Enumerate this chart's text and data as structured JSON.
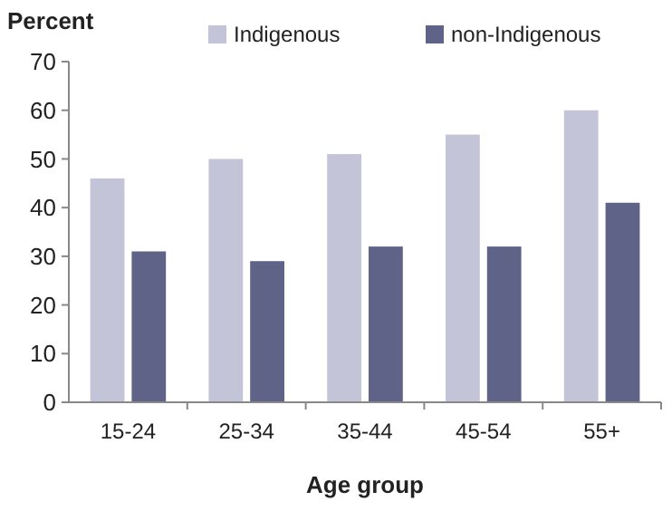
{
  "chart_data": {
    "type": "bar",
    "ylabel": "Percent",
    "xlabel": "Age group",
    "categories": [
      "15-24",
      "25-34",
      "35-44",
      "45-54",
      "55+"
    ],
    "series": [
      {
        "name": "Indigenous",
        "color": "#c4c4d8",
        "values": [
          46,
          50,
          51,
          55,
          60
        ]
      },
      {
        "name": "non-Indigenous",
        "color": "#5f6387",
        "values": [
          31,
          29,
          32,
          32,
          41
        ]
      }
    ],
    "ylim": [
      0,
      70
    ],
    "yticks": [
      0,
      10,
      20,
      30,
      40,
      50,
      60,
      70
    ],
    "grid": false,
    "legend": "top right"
  }
}
